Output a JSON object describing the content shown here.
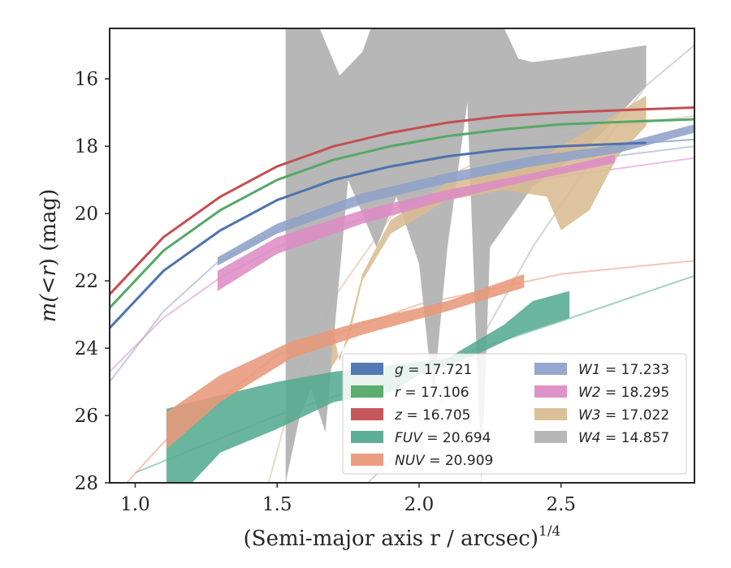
{
  "chart_data": {
    "type": "line",
    "xlabel": "(Semi-major axis r / arcsec)",
    "xlabel_exponent": "1/4",
    "ylabel_parts": [
      "m(",
      "<",
      "r",
      ") (mag)"
    ],
    "xlim": [
      0.91,
      2.97
    ],
    "ylim": [
      28,
      14.5
    ],
    "y_inverted": true,
    "grid": false,
    "legend_position": "lower-right",
    "x_ticks": [
      1.0,
      1.5,
      2.0,
      2.5
    ],
    "x_tick_labels": [
      "1.0",
      "1.5",
      "2.0",
      "2.5"
    ],
    "y_ticks": [
      16,
      18,
      20,
      22,
      24,
      26,
      28
    ],
    "y_tick_labels": [
      "16",
      "18",
      "20",
      "22",
      "24",
      "26",
      "28"
    ],
    "series": [
      {
        "name": "g",
        "value": "17.721",
        "legend_label": "g = 17.721",
        "color": "#4c72b0",
        "curve": [
          [
            0.91,
            23.4
          ],
          [
            1.1,
            21.7
          ],
          [
            1.3,
            20.5
          ],
          [
            1.5,
            19.6
          ],
          [
            1.7,
            19.0
          ],
          [
            1.9,
            18.6
          ],
          [
            2.1,
            18.3
          ],
          [
            2.3,
            18.1
          ],
          [
            2.5,
            18.0
          ],
          [
            2.8,
            17.9
          ]
        ],
        "fit": [
          [
            2.8,
            17.9
          ],
          [
            2.97,
            17.8
          ]
        ]
      },
      {
        "name": "r",
        "value": "17.106",
        "legend_label": "r = 17.106",
        "color": "#55a868",
        "curve": [
          [
            0.91,
            22.8
          ],
          [
            1.1,
            21.1
          ],
          [
            1.3,
            19.9
          ],
          [
            1.5,
            19.0
          ],
          [
            1.7,
            18.4
          ],
          [
            1.9,
            18.0
          ],
          [
            2.1,
            17.7
          ],
          [
            2.3,
            17.5
          ],
          [
            2.5,
            17.35
          ],
          [
            2.8,
            17.25
          ],
          [
            2.97,
            17.2
          ]
        ]
      },
      {
        "name": "z",
        "value": "16.705",
        "legend_label": "z = 16.705",
        "color": "#c44e52",
        "curve": [
          [
            0.91,
            22.4
          ],
          [
            1.1,
            20.7
          ],
          [
            1.3,
            19.5
          ],
          [
            1.5,
            18.6
          ],
          [
            1.7,
            18.0
          ],
          [
            1.9,
            17.6
          ],
          [
            2.1,
            17.3
          ],
          [
            2.3,
            17.1
          ],
          [
            2.5,
            17.0
          ],
          [
            2.8,
            16.9
          ],
          [
            2.97,
            16.85
          ]
        ]
      },
      {
        "name": "FUV",
        "value": "20.694",
        "legend_label": "FUV = 20.694",
        "color": "#55ab8f",
        "band_upper": [
          [
            1.11,
            25.8
          ],
          [
            1.3,
            25.4
          ],
          [
            1.5,
            25.0
          ],
          [
            1.7,
            24.7
          ],
          [
            1.9,
            24.5
          ],
          [
            2.1,
            24.3
          ],
          [
            2.3,
            23.3
          ],
          [
            2.4,
            22.6
          ],
          [
            2.53,
            22.3
          ]
        ],
        "band_lower": [
          [
            1.11,
            28.0
          ],
          [
            1.2,
            28.0
          ],
          [
            1.3,
            27.1
          ],
          [
            1.5,
            26.4
          ],
          [
            1.7,
            25.6
          ],
          [
            1.9,
            25.3
          ],
          [
            2.0,
            24.8
          ],
          [
            2.2,
            24.2
          ],
          [
            2.35,
            23.6
          ],
          [
            2.53,
            23.1
          ]
        ],
        "fit": [
          [
            1.0,
            27.7
          ],
          [
            1.5,
            26.0
          ],
          [
            2.0,
            24.6
          ],
          [
            2.5,
            23.2
          ],
          [
            2.97,
            21.85
          ]
        ]
      },
      {
        "name": "NUV",
        "value": "20.909",
        "legend_label": "NUV = 20.909",
        "color": "#e8987a",
        "band_upper": [
          [
            1.11,
            25.9
          ],
          [
            1.3,
            24.8
          ],
          [
            1.55,
            23.8
          ],
          [
            1.8,
            23.2
          ],
          [
            2.1,
            22.6
          ],
          [
            2.37,
            21.8
          ]
        ],
        "band_lower": [
          [
            1.11,
            27.0
          ],
          [
            1.3,
            25.6
          ],
          [
            1.55,
            24.3
          ],
          [
            1.8,
            23.6
          ],
          [
            2.1,
            22.9
          ],
          [
            2.37,
            22.2
          ]
        ],
        "fit": [
          [
            0.97,
            28.0
          ],
          [
            1.1,
            26.8
          ],
          [
            1.5,
            24.2
          ],
          [
            2.0,
            22.7
          ],
          [
            2.5,
            21.8
          ],
          [
            2.97,
            21.4
          ]
        ]
      },
      {
        "name": "W1",
        "value": "17.233",
        "legend_label": "W1 = 17.233",
        "color": "#8fa2c9",
        "band_upper": [
          [
            1.29,
            21.3
          ],
          [
            1.5,
            20.3
          ],
          [
            1.8,
            19.4
          ],
          [
            2.1,
            18.8
          ],
          [
            2.4,
            18.3
          ],
          [
            2.7,
            17.95
          ],
          [
            2.97,
            17.35
          ]
        ],
        "band_lower": [
          [
            1.29,
            21.55
          ],
          [
            1.5,
            20.6
          ],
          [
            1.8,
            19.7
          ],
          [
            2.1,
            19.1
          ],
          [
            2.4,
            18.6
          ],
          [
            2.7,
            18.2
          ],
          [
            2.97,
            17.6
          ]
        ],
        "fit": [
          [
            0.91,
            25.0
          ],
          [
            1.1,
            22.9
          ],
          [
            1.29,
            21.45
          ],
          [
            1.5,
            20.5
          ],
          [
            2.0,
            19.2
          ],
          [
            2.5,
            18.5
          ],
          [
            2.97,
            18.0
          ]
        ]
      },
      {
        "name": "W2",
        "value": "18.295",
        "legend_label": "W2 = 18.295",
        "color": "#dd8cc4",
        "band_upper": [
          [
            1.29,
            21.7
          ],
          [
            1.5,
            20.7
          ],
          [
            1.8,
            19.9
          ],
          [
            2.1,
            19.3
          ],
          [
            2.4,
            18.8
          ],
          [
            2.69,
            18.25
          ]
        ],
        "band_lower": [
          [
            1.29,
            22.3
          ],
          [
            1.5,
            21.2
          ],
          [
            1.8,
            20.3
          ],
          [
            2.1,
            19.6
          ],
          [
            2.4,
            19.0
          ],
          [
            2.69,
            18.5
          ]
        ],
        "fit": [
          [
            0.91,
            24.7
          ],
          [
            1.1,
            23.1
          ],
          [
            1.3,
            21.9
          ],
          [
            1.5,
            21.0
          ],
          [
            2.0,
            19.6
          ],
          [
            2.5,
            18.9
          ],
          [
            2.97,
            18.35
          ]
        ]
      },
      {
        "name": "W3",
        "value": "17.022",
        "legend_label": "W3 = 17.022",
        "color": "#d9bc91",
        "band_upper": [
          [
            1.69,
            23.2
          ],
          [
            1.72,
            24.4
          ],
          [
            1.75,
            23.5
          ],
          [
            1.8,
            21.8
          ],
          [
            1.9,
            20.2
          ],
          [
            2.1,
            19.1
          ],
          [
            2.2,
            18.9
          ],
          [
            2.4,
            18.5
          ],
          [
            2.6,
            17.5
          ],
          [
            2.7,
            17.0
          ],
          [
            2.8,
            16.5
          ]
        ],
        "band_lower": [
          [
            1.69,
            24.6
          ],
          [
            1.72,
            24.2
          ],
          [
            1.75,
            23.8
          ],
          [
            1.8,
            22.0
          ],
          [
            1.9,
            20.6
          ],
          [
            2.1,
            19.6
          ],
          [
            2.3,
            19.3
          ],
          [
            2.45,
            19.5
          ],
          [
            2.5,
            20.5
          ],
          [
            2.6,
            19.9
          ],
          [
            2.7,
            18.3
          ],
          [
            2.8,
            17.4
          ]
        ],
        "fit": [
          [
            1.47,
            28.0
          ],
          [
            1.55,
            25.5
          ],
          [
            1.7,
            22.5
          ],
          [
            1.9,
            20.1
          ],
          [
            2.1,
            18.9
          ],
          [
            2.3,
            18.1
          ],
          [
            2.6,
            17.5
          ],
          [
            2.97,
            17.1
          ]
        ]
      },
      {
        "name": "W4",
        "value": "14.857",
        "legend_label": "W4 = 14.857",
        "color": "#b3b3b3",
        "band_upper": [
          [
            1.53,
            14.5
          ],
          [
            1.6,
            14.5
          ],
          [
            1.65,
            14.5
          ],
          [
            1.72,
            15.9
          ],
          [
            1.8,
            15.2
          ],
          [
            1.83,
            14.5
          ],
          [
            2.0,
            14.5
          ],
          [
            2.2,
            14.5
          ],
          [
            2.3,
            14.5
          ],
          [
            2.35,
            15.4
          ],
          [
            2.4,
            15.5
          ],
          [
            2.5,
            15.4
          ],
          [
            2.8,
            15.0
          ],
          [
            2.8,
            14.8
          ]
        ],
        "band_lower": [
          [
            1.53,
            28.0
          ],
          [
            1.58,
            26.0
          ],
          [
            1.62,
            25.2
          ],
          [
            1.67,
            26.5
          ],
          [
            1.75,
            19.0
          ],
          [
            1.85,
            21.0
          ],
          [
            1.92,
            19.5
          ],
          [
            2.0,
            21.5
          ],
          [
            2.05,
            25.5
          ],
          [
            2.1,
            21.0
          ],
          [
            2.17,
            16.7
          ],
          [
            2.22,
            28.0
          ],
          [
            2.25,
            21.0
          ],
          [
            2.4,
            19.2
          ],
          [
            2.6,
            18.0
          ],
          [
            2.8,
            16.2
          ]
        ],
        "fit": [
          [
            1.82,
            28.0
          ],
          [
            2.0,
            26.5
          ],
          [
            2.2,
            24.0
          ],
          [
            2.4,
            21.0
          ],
          [
            2.6,
            18.5
          ],
          [
            2.8,
            16.2
          ],
          [
            2.97,
            15.0
          ]
        ]
      }
    ]
  }
}
